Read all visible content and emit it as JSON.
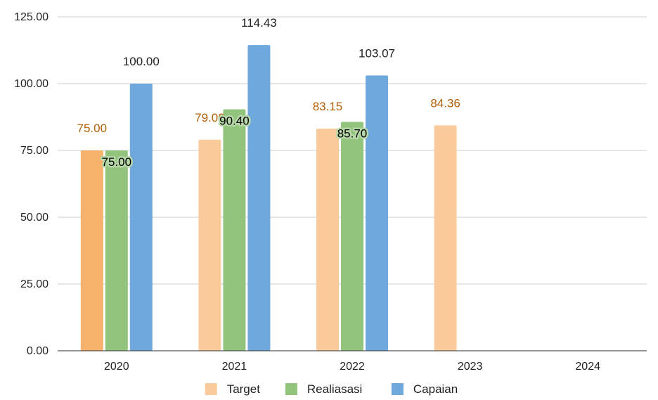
{
  "chart_data": {
    "type": "bar",
    "categories": [
      "2020",
      "2021",
      "2022",
      "2023",
      "2024"
    ],
    "y_ticks": [
      "0.00",
      "25.00",
      "50.00",
      "75.00",
      "100.00",
      "125.00"
    ],
    "ylim": [
      0,
      125
    ],
    "grid": true,
    "legend_position": "bottom",
    "series": [
      {
        "name": "Target",
        "color": "#f9cb9c",
        "label_color": "#b45f06",
        "values": [
          75.0,
          79.0,
          83.15,
          84.36,
          null
        ],
        "labels": [
          "75.00",
          "79.00",
          "83.15",
          "84.36",
          ""
        ],
        "highlight": {
          "index": 0,
          "color": "#f6b26b"
        }
      },
      {
        "name": "Realiasasi",
        "color": "#93c47d",
        "label_color": "#000000",
        "label_halo": "#b6d7a8",
        "values": [
          75.0,
          90.4,
          85.7,
          null,
          null
        ],
        "labels": [
          "75.00",
          "90.40",
          "85.70",
          "",
          ""
        ]
      },
      {
        "name": "Capaian",
        "color": "#6fa8dc",
        "label_color": "#222222",
        "values": [
          100.0,
          114.43,
          103.07,
          null,
          null
        ],
        "labels": [
          "100.00",
          "114.43",
          "103.07",
          "",
          ""
        ]
      }
    ]
  }
}
